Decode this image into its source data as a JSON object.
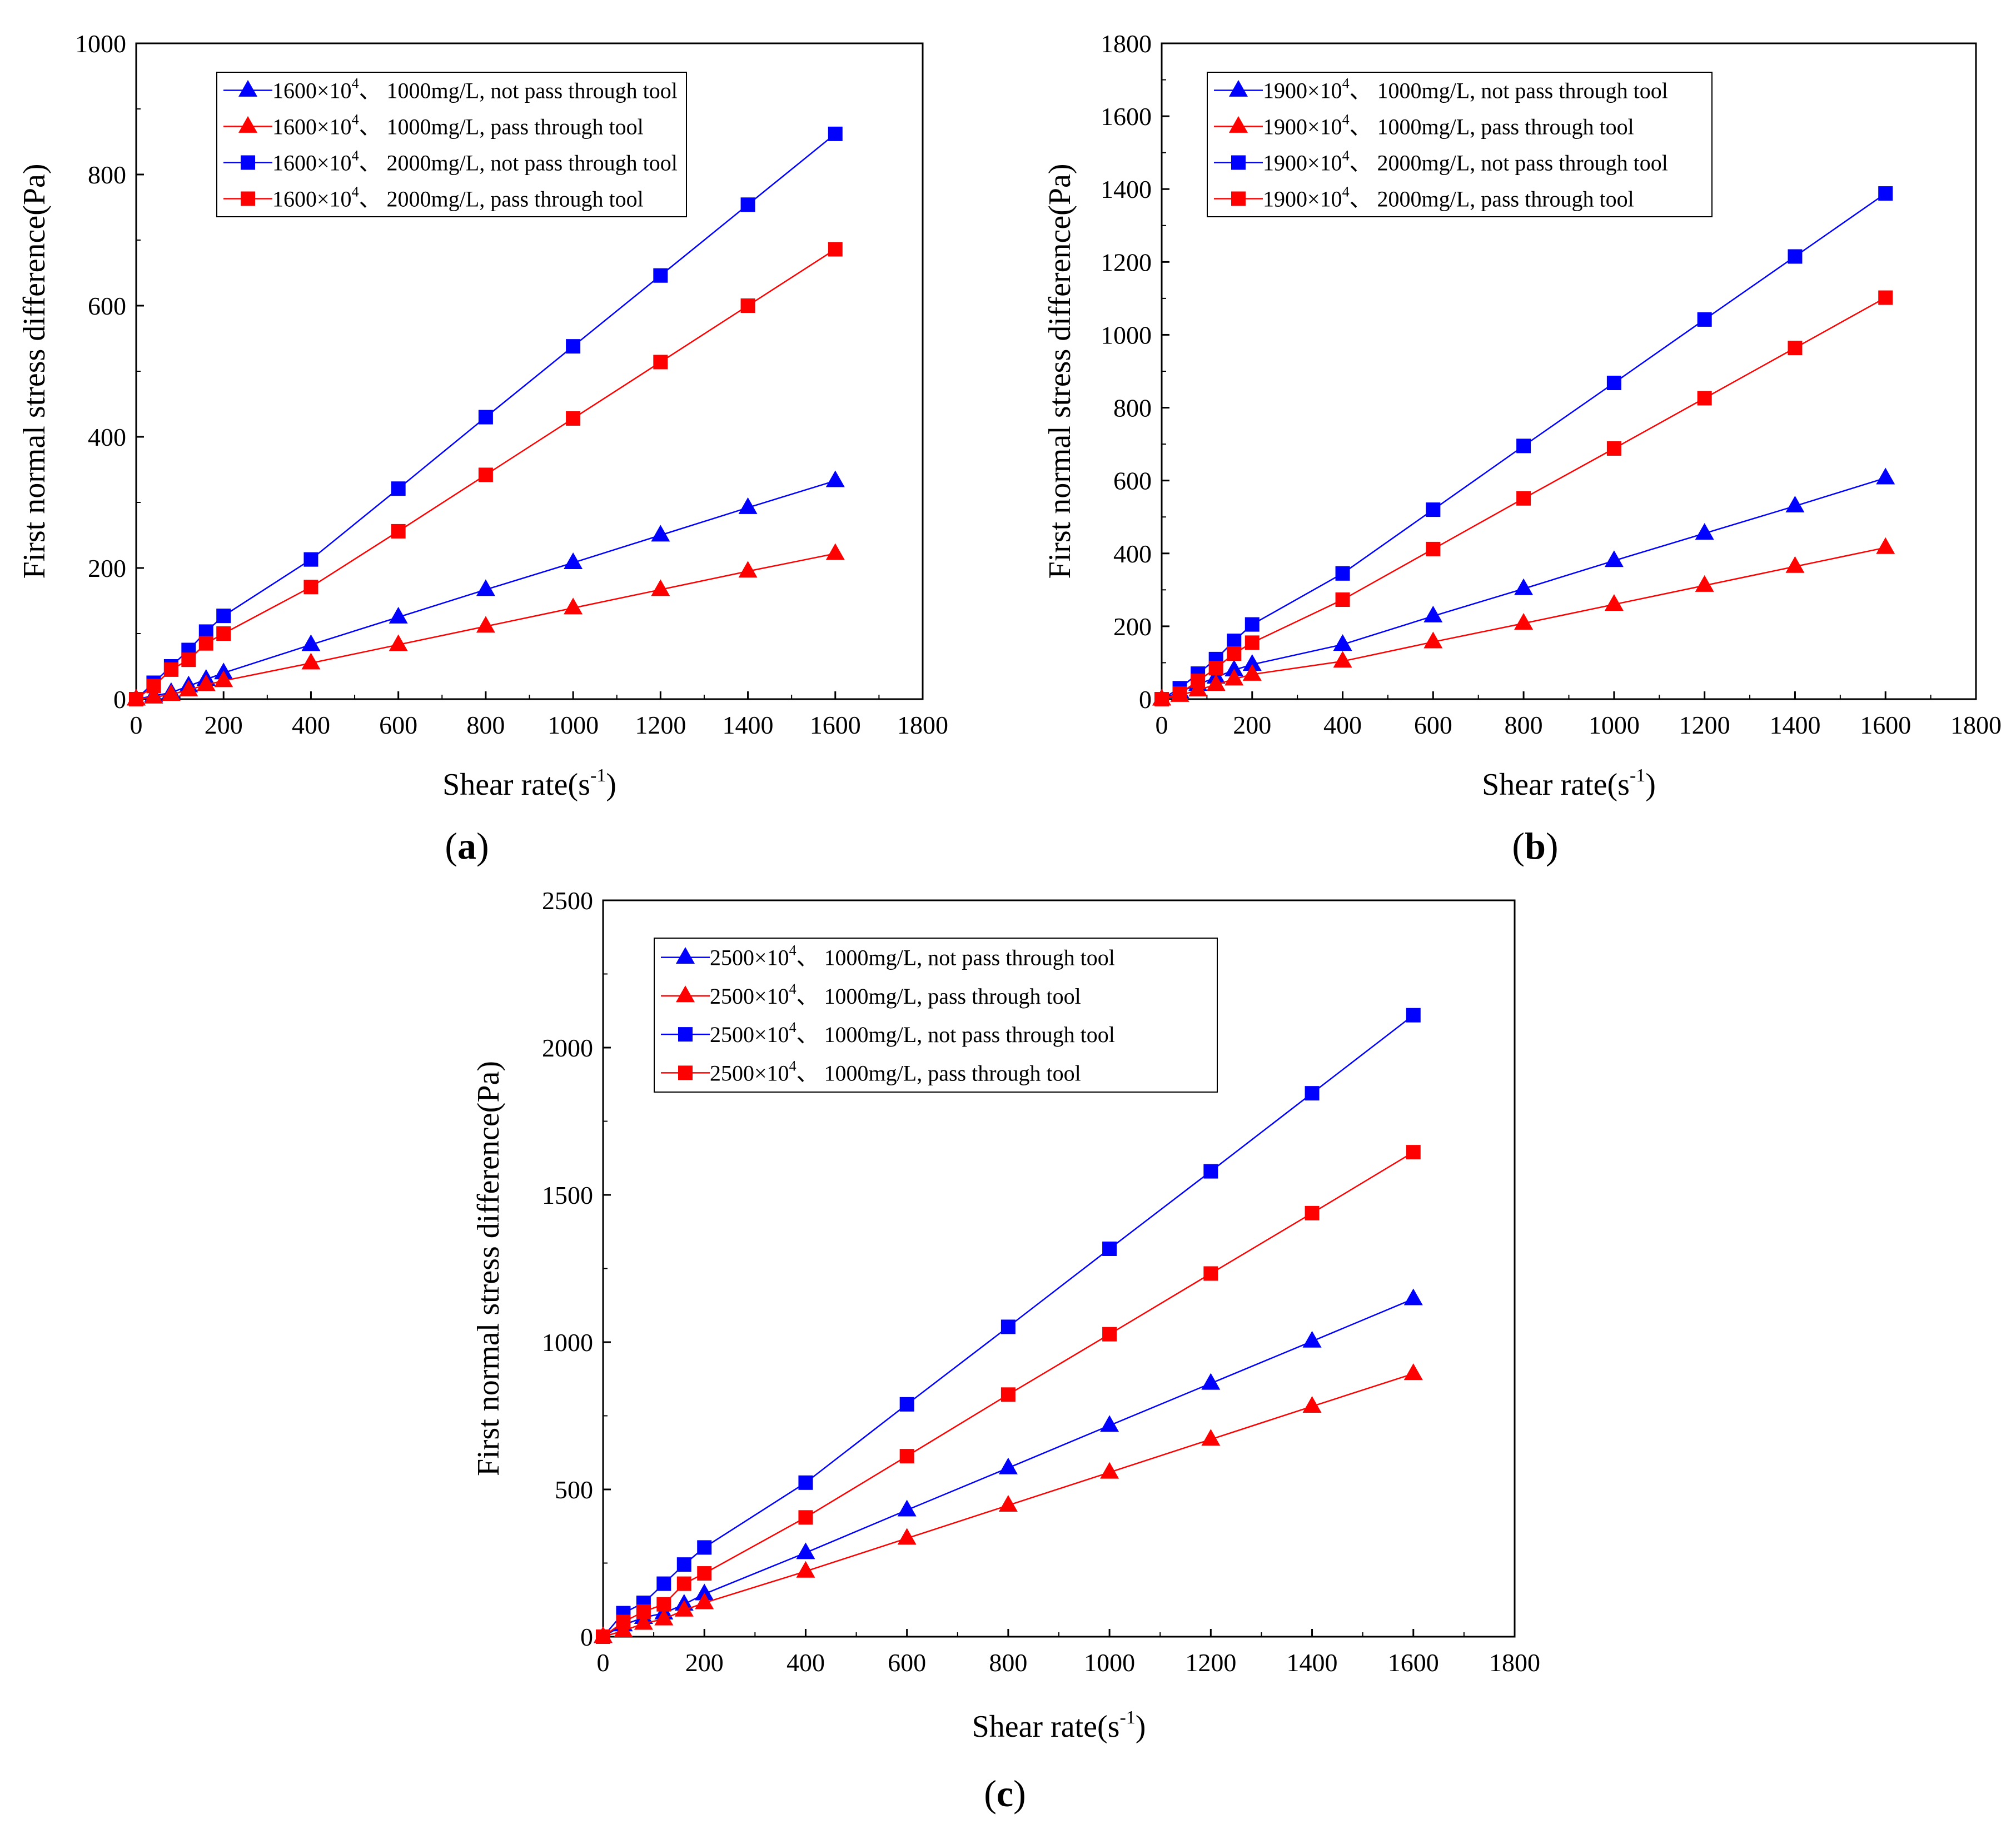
{
  "figure": {
    "panel_labels": [
      {
        "open": "(",
        "letter": "a",
        "close": ")"
      },
      {
        "open": "(",
        "letter": "b",
        "close": ")"
      },
      {
        "open": "(",
        "letter": "c",
        "close": ")"
      }
    ]
  },
  "chart_data": [
    {
      "type": "line",
      "panel": "a",
      "xlabel": "Shear rate(s",
      "xlabel_sup": "-1",
      "xlabel_close": ")",
      "ylabel": "First normal stress difference(Pa)",
      "xlim": [
        0,
        1800
      ],
      "ylim": [
        0,
        1000
      ],
      "xticks": [
        0,
        200,
        400,
        600,
        800,
        1000,
        1200,
        1400,
        1600,
        1800
      ],
      "yticks": [
        0,
        200,
        400,
        600,
        800,
        1000
      ],
      "legend_position": "top-left",
      "series": [
        {
          "name": "1600×10^4、1000mg/L, not pass through tool",
          "label_pre": "1600×10",
          "label_sup": "4",
          "label_post": "、 1000mg/L, not pass through tool",
          "color": "#0000ff",
          "marker": "triangle",
          "x": [
            0,
            40,
            80,
            120,
            160,
            200,
            400,
            600,
            800,
            1000,
            1200,
            1400,
            1600
          ],
          "y": [
            0,
            5,
            10,
            20,
            30,
            40,
            83,
            125,
            167,
            208,
            250,
            292,
            333
          ]
        },
        {
          "name": "1600×10^4、1000mg/L, pass through tool",
          "label_pre": "1600×10",
          "label_sup": "4",
          "label_post": "、 1000mg/L, pass through tool",
          "color": "#ff0000",
          "marker": "triangle",
          "x": [
            0,
            40,
            80,
            120,
            160,
            200,
            400,
            600,
            800,
            1000,
            1200,
            1400,
            1600
          ],
          "y": [
            0,
            3,
            7,
            14,
            22,
            28,
            55,
            83,
            111,
            139,
            167,
            195,
            222
          ]
        },
        {
          "name": "1600×10^4、2000mg/L, not pass through tool",
          "label_pre": "1600×10",
          "label_sup": "4",
          "label_post": "、 2000mg/L, not pass through tool",
          "color": "#0000ff",
          "marker": "square",
          "x": [
            0,
            40,
            80,
            120,
            160,
            200,
            400,
            600,
            800,
            1000,
            1200,
            1400,
            1600
          ],
          "y": [
            0,
            25,
            50,
            75,
            103,
            127,
            213,
            321,
            430,
            538,
            646,
            754,
            862
          ]
        },
        {
          "name": "1600×10^4、2000mg/L, pass through tool",
          "label_pre": "1600×10",
          "label_sup": "4",
          "label_post": "、 2000mg/L, pass through tool",
          "color": "#ff0000",
          "marker": "square",
          "x": [
            0,
            40,
            80,
            120,
            160,
            200,
            400,
            600,
            800,
            1000,
            1200,
            1400,
            1600
          ],
          "y": [
            0,
            20,
            45,
            60,
            85,
            100,
            171,
            256,
            342,
            428,
            514,
            600,
            686
          ]
        }
      ]
    },
    {
      "type": "line",
      "panel": "b",
      "xlabel": "Shear rate(s",
      "xlabel_sup": "-1",
      "xlabel_close": ")",
      "ylabel": "First normal stress difference(Pa)",
      "xlim": [
        0,
        1800
      ],
      "ylim": [
        0,
        1800
      ],
      "xticks": [
        0,
        200,
        400,
        600,
        800,
        1000,
        1200,
        1400,
        1600,
        1800
      ],
      "yticks": [
        0,
        200,
        400,
        600,
        800,
        1000,
        1200,
        1400,
        1600,
        1800
      ],
      "legend_position": "top-left",
      "series": [
        {
          "name": "1900×10^4、1000mg/L, not pass through tool",
          "label_pre": "1900×10",
          "label_sup": "4",
          "label_post": "、 1000mg/L, not pass through tool",
          "color": "#0000ff",
          "marker": "triangle",
          "x": [
            0,
            40,
            80,
            120,
            160,
            200,
            400,
            600,
            800,
            1000,
            1200,
            1400,
            1600
          ],
          "y": [
            0,
            20,
            40,
            60,
            80,
            95,
            150,
            228,
            303,
            380,
            455,
            530,
            607
          ]
        },
        {
          "name": "1900×10^4、1000mg/L, pass through tool",
          "label_pre": "1900×10",
          "label_sup": "4",
          "label_post": "、 1000mg/L, pass through tool",
          "color": "#ff0000",
          "marker": "triangle",
          "x": [
            0,
            40,
            80,
            120,
            160,
            200,
            400,
            600,
            800,
            1000,
            1200,
            1400,
            1600
          ],
          "y": [
            0,
            10,
            25,
            40,
            55,
            68,
            104,
            157,
            208,
            260,
            312,
            364,
            416
          ]
        },
        {
          "name": "1900×10^4、2000mg/L, not pass through tool",
          "label_pre": "1900×10",
          "label_sup": "4",
          "label_post": "、 2000mg/L, not pass through tool",
          "color": "#0000ff",
          "marker": "square",
          "x": [
            0,
            40,
            80,
            120,
            160,
            200,
            400,
            600,
            800,
            1000,
            1200,
            1400,
            1600
          ],
          "y": [
            0,
            30,
            70,
            110,
            160,
            205,
            345,
            520,
            695,
            868,
            1042,
            1215,
            1388
          ]
        },
        {
          "name": "1900×10^4、2000mg/L, pass through tool",
          "label_pre": "1900×10",
          "label_sup": "4",
          "label_post": "、 2000mg/L, pass through tool",
          "color": "#ff0000",
          "marker": "square",
          "x": [
            0,
            40,
            80,
            120,
            160,
            200,
            400,
            600,
            800,
            1000,
            1200,
            1400,
            1600
          ],
          "y": [
            0,
            15,
            50,
            85,
            125,
            155,
            273,
            412,
            551,
            688,
            826,
            964,
            1102
          ]
        }
      ]
    },
    {
      "type": "line",
      "panel": "c",
      "xlabel": "Shear rate(s",
      "xlabel_sup": "-1",
      "xlabel_close": ")",
      "ylabel": "First normal stress difference(Pa)",
      "xlim": [
        0,
        1800
      ],
      "ylim": [
        0,
        2500
      ],
      "xticks": [
        0,
        200,
        400,
        600,
        800,
        1000,
        1200,
        1400,
        1600,
        1800
      ],
      "yticks": [
        0,
        500,
        1000,
        1500,
        2000,
        2500
      ],
      "legend_position": "top-left",
      "series": [
        {
          "name": "2500×10^4、1000mg/L, not pass through tool",
          "label_pre": "2500×10",
          "label_sup": "4",
          "label_post": "、 1000mg/L, not pass through tool",
          "color": "#0000ff",
          "marker": "triangle",
          "x": [
            0,
            40,
            80,
            120,
            160,
            200,
            400,
            600,
            800,
            1000,
            1200,
            1400,
            1600
          ],
          "y": [
            0,
            40,
            65,
            80,
            110,
            145,
            285,
            430,
            573,
            717,
            860,
            1003,
            1147
          ]
        },
        {
          "name": "2500×10^4、1000mg/L, pass through tool",
          "label_pre": "2500×10",
          "label_sup": "4",
          "label_post": "、 1000mg/L, pass through tool",
          "color": "#ff0000",
          "marker": "triangle",
          "x": [
            0,
            40,
            80,
            120,
            160,
            200,
            400,
            600,
            800,
            1000,
            1200,
            1400,
            1600
          ],
          "y": [
            0,
            20,
            45,
            60,
            90,
            115,
            222,
            334,
            446,
            558,
            670,
            782,
            893
          ]
        },
        {
          "name": "2500×10^4、1000mg/L, not pass through tool",
          "label_pre": "2500×10",
          "label_sup": "4",
          "label_post": "、 1000mg/L, not pass through tool",
          "color": "#0000ff",
          "marker": "square",
          "x": [
            0,
            40,
            80,
            120,
            160,
            200,
            400,
            600,
            800,
            1000,
            1200,
            1400,
            1600
          ],
          "y": [
            0,
            80,
            115,
            180,
            245,
            303,
            523,
            789,
            1052,
            1317,
            1580,
            1845,
            2110
          ]
        },
        {
          "name": "2500×10^4、1000mg/L, pass through tool",
          "label_pre": "2500×10",
          "label_sup": "4",
          "label_post": "、 1000mg/L, pass through tool",
          "color": "#ff0000",
          "marker": "square",
          "x": [
            0,
            40,
            80,
            120,
            160,
            200,
            400,
            600,
            800,
            1000,
            1200,
            1400,
            1600
          ],
          "y": [
            0,
            50,
            85,
            110,
            180,
            215,
            405,
            613,
            822,
            1027,
            1233,
            1438,
            1645
          ]
        }
      ]
    }
  ]
}
